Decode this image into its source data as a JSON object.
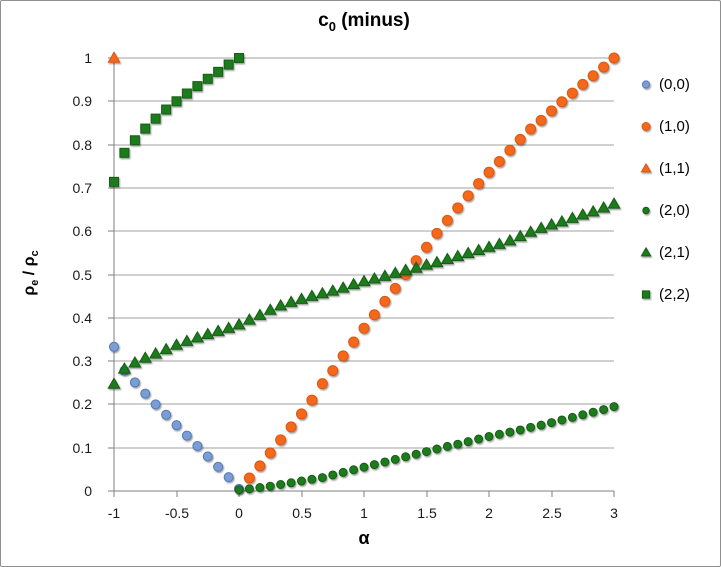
{
  "chart": {
    "title": {
      "base": "c",
      "sub": "0",
      "rest": " (minus)"
    },
    "x_axis": {
      "label": "α",
      "ticks": [
        -1,
        -0.5,
        0,
        0.5,
        1,
        1.5,
        2,
        2.5,
        3
      ],
      "tick_labels": [
        "-1",
        "-0.5",
        "0",
        "0.5",
        "1",
        "1.5",
        "2",
        "2.5",
        "3"
      ]
    },
    "y_axis": {
      "label_p1": "ρ",
      "label_s1": "e",
      "label_p2": " / ρ",
      "label_s2": "c",
      "tick_labels": [
        "0",
        "0.1",
        "0.2",
        "0.3",
        "0.4",
        "0.5",
        "0.6",
        "0.7",
        "0.8",
        "0.9",
        "1"
      ]
    },
    "colors": {
      "gridline": "#a0a0a0",
      "axis": "#7f7f7f",
      "tick_text": "#1a1a1a",
      "blue_fill": "#7b9dd4",
      "blue_edge": "#4f7ab8",
      "orange_fill": "#f4671c",
      "orange_edge": "#dd5711",
      "green_fill": "#1e7c1e",
      "green_edge": "#145c14"
    }
  },
  "chart_data": {
    "type": "scatter",
    "title": "c0 (minus)",
    "xlabel": "α",
    "ylabel": "ρe / ρc",
    "xlim": [
      -1,
      3
    ],
    "ylim": [
      0,
      1
    ],
    "grid": "horizontal",
    "legend_position": "right",
    "series": [
      {
        "name": "(0,0)",
        "marker": "circle",
        "color": "#7b9dd4",
        "edge": "#4f7ab8",
        "size": 9,
        "points": [
          [
            -1,
            0.333
          ],
          [
            -0.917,
            0.278
          ],
          [
            -0.833,
            0.251
          ],
          [
            -0.75,
            0.225
          ],
          [
            -0.667,
            0.2
          ],
          [
            -0.583,
            0.176
          ],
          [
            -0.5,
            0.152
          ],
          [
            -0.417,
            0.128
          ],
          [
            -0.333,
            0.104
          ],
          [
            -0.25,
            0.08
          ],
          [
            -0.167,
            0.056
          ],
          [
            -0.083,
            0.032
          ],
          [
            0,
            0.005
          ]
        ]
      },
      {
        "name": "(1,0)",
        "marker": "circle",
        "color": "#f4671c",
        "edge": "#dd5711",
        "size": 10,
        "points": [
          [
            0.083,
            0.03
          ],
          [
            0.167,
            0.058
          ],
          [
            0.25,
            0.088
          ],
          [
            0.333,
            0.118
          ],
          [
            0.417,
            0.148
          ],
          [
            0.5,
            0.178
          ],
          [
            0.583,
            0.21
          ],
          [
            0.667,
            0.248
          ],
          [
            0.75,
            0.278
          ],
          [
            0.833,
            0.312
          ],
          [
            0.917,
            0.344
          ],
          [
            1,
            0.376
          ],
          [
            1.083,
            0.407
          ],
          [
            1.167,
            0.438
          ],
          [
            1.25,
            0.468
          ],
          [
            1.333,
            0.5
          ],
          [
            1.417,
            0.532
          ],
          [
            1.5,
            0.563
          ],
          [
            1.583,
            0.595
          ],
          [
            1.667,
            0.625
          ],
          [
            1.75,
            0.654
          ],
          [
            1.833,
            0.682
          ],
          [
            1.917,
            0.71
          ],
          [
            2,
            0.736
          ],
          [
            2.083,
            0.761
          ],
          [
            2.167,
            0.787
          ],
          [
            2.25,
            0.812
          ],
          [
            2.333,
            0.836
          ],
          [
            2.417,
            0.856
          ],
          [
            2.5,
            0.878
          ],
          [
            2.583,
            0.899
          ],
          [
            2.667,
            0.919
          ],
          [
            2.75,
            0.939
          ],
          [
            2.833,
            0.959
          ],
          [
            2.917,
            0.979
          ],
          [
            3,
            1
          ]
        ]
      },
      {
        "name": "(1,1)",
        "marker": "triangle",
        "color": "#f4671c",
        "edge": "#dd5711",
        "size": 10,
        "points": [
          [
            -1,
            1
          ]
        ]
      },
      {
        "name": "(2,0)",
        "marker": "circle",
        "color": "#1e7c1e",
        "edge": "#145c14",
        "size": 8,
        "points": [
          [
            0,
            0.003
          ],
          [
            0.083,
            0.005
          ],
          [
            0.167,
            0.008
          ],
          [
            0.25,
            0.011
          ],
          [
            0.333,
            0.015
          ],
          [
            0.417,
            0.019
          ],
          [
            0.5,
            0.023
          ],
          [
            0.583,
            0.027
          ],
          [
            0.667,
            0.031
          ],
          [
            0.75,
            0.037
          ],
          [
            0.833,
            0.043
          ],
          [
            0.917,
            0.049
          ],
          [
            1,
            0.055
          ],
          [
            1.083,
            0.061
          ],
          [
            1.167,
            0.067
          ],
          [
            1.25,
            0.073
          ],
          [
            1.333,
            0.079
          ],
          [
            1.417,
            0.085
          ],
          [
            1.5,
            0.091
          ],
          [
            1.583,
            0.097
          ],
          [
            1.667,
            0.103
          ],
          [
            1.75,
            0.108
          ],
          [
            1.833,
            0.114
          ],
          [
            1.917,
            0.12
          ],
          [
            2,
            0.126
          ],
          [
            2.083,
            0.131
          ],
          [
            2.167,
            0.136
          ],
          [
            2.25,
            0.141
          ],
          [
            2.333,
            0.147
          ],
          [
            2.417,
            0.152
          ],
          [
            2.5,
            0.158
          ],
          [
            2.583,
            0.164
          ],
          [
            2.667,
            0.17
          ],
          [
            2.75,
            0.176
          ],
          [
            2.833,
            0.182
          ],
          [
            2.917,
            0.188
          ],
          [
            3,
            0.195
          ]
        ]
      },
      {
        "name": "(2,1)",
        "marker": "triangle",
        "color": "#1e7c1e",
        "edge": "#145c14",
        "size": 10,
        "points": [
          [
            -1,
            0.247
          ],
          [
            -0.917,
            0.282
          ],
          [
            -0.833,
            0.296
          ],
          [
            -0.75,
            0.307
          ],
          [
            -0.667,
            0.317
          ],
          [
            -0.583,
            0.327
          ],
          [
            -0.5,
            0.337
          ],
          [
            -0.417,
            0.346
          ],
          [
            -0.333,
            0.354
          ],
          [
            -0.25,
            0.362
          ],
          [
            -0.167,
            0.369
          ],
          [
            -0.083,
            0.376
          ],
          [
            0,
            0.384
          ],
          [
            0.083,
            0.395
          ],
          [
            0.167,
            0.406
          ],
          [
            0.25,
            0.418
          ],
          [
            0.333,
            0.428
          ],
          [
            0.417,
            0.436
          ],
          [
            0.5,
            0.443
          ],
          [
            0.583,
            0.45
          ],
          [
            0.667,
            0.456
          ],
          [
            0.75,
            0.462
          ],
          [
            0.833,
            0.469
          ],
          [
            0.917,
            0.477
          ],
          [
            1,
            0.484
          ],
          [
            1.083,
            0.49
          ],
          [
            1.167,
            0.496
          ],
          [
            1.25,
            0.503
          ],
          [
            1.333,
            0.51
          ],
          [
            1.417,
            0.515
          ],
          [
            1.5,
            0.522
          ],
          [
            1.583,
            0.528
          ],
          [
            1.667,
            0.535
          ],
          [
            1.75,
            0.542
          ],
          [
            1.833,
            0.549
          ],
          [
            1.917,
            0.556
          ],
          [
            2,
            0.563
          ],
          [
            2.083,
            0.57
          ],
          [
            2.167,
            0.578
          ],
          [
            2.25,
            0.588
          ],
          [
            2.333,
            0.598
          ],
          [
            2.417,
            0.607
          ],
          [
            2.5,
            0.615
          ],
          [
            2.583,
            0.622
          ],
          [
            2.667,
            0.63
          ],
          [
            2.75,
            0.638
          ],
          [
            2.833,
            0.645
          ],
          [
            2.917,
            0.654
          ],
          [
            3,
            0.663
          ]
        ]
      },
      {
        "name": "(2,2)",
        "marker": "square",
        "color": "#1e7c1e",
        "edge": "#145c14",
        "size": 9,
        "points": [
          [
            -1,
            0.714
          ],
          [
            -0.917,
            0.781
          ],
          [
            -0.833,
            0.81
          ],
          [
            -0.75,
            0.837
          ],
          [
            -0.667,
            0.86
          ],
          [
            -0.583,
            0.881
          ],
          [
            -0.5,
            0.9
          ],
          [
            -0.417,
            0.918
          ],
          [
            -0.333,
            0.935
          ],
          [
            -0.25,
            0.952
          ],
          [
            -0.167,
            0.968
          ],
          [
            -0.083,
            0.985
          ],
          [
            0,
            1
          ]
        ]
      }
    ]
  },
  "legend": {
    "items": [
      "(0,0)",
      "(1,0)",
      "(1,1)",
      "(2,0)",
      "(2,1)",
      "(2,2)"
    ]
  }
}
